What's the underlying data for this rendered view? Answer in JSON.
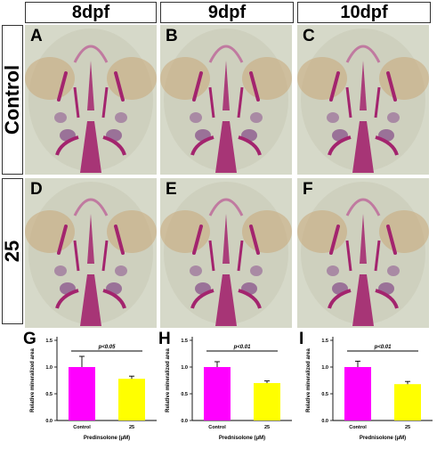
{
  "columns": [
    "8dpf",
    "9dpf",
    "10dpf"
  ],
  "rows": [
    "Control",
    "25"
  ],
  "panel_labels": [
    "A",
    "B",
    "C",
    "D",
    "E",
    "F"
  ],
  "chart_data": [
    {
      "type": "bar",
      "label": "G",
      "categories": [
        "Control",
        "25"
      ],
      "values": [
        1.0,
        0.78
      ],
      "errors": [
        0.2,
        0.05
      ],
      "colors": [
        "#ff00ff",
        "#ffff00"
      ],
      "ylabel": "Relative mineralized area",
      "xlabel": "Predinsolone (μM)",
      "ylim": [
        0,
        1.5
      ],
      "yticks": [
        "0.0",
        "0.5",
        "1.0",
        "1.5"
      ],
      "significance": "p<0.05"
    },
    {
      "type": "bar",
      "label": "H",
      "categories": [
        "Control",
        "25"
      ],
      "values": [
        1.0,
        0.7
      ],
      "errors": [
        0.1,
        0.04
      ],
      "colors": [
        "#ff00ff",
        "#ffff00"
      ],
      "ylabel": "Relative mineralized area",
      "xlabel": "Prednisolone (μM)",
      "ylim": [
        0,
        1.5
      ],
      "yticks": [
        "0.0",
        "0.5",
        "1.0",
        "1.5"
      ],
      "significance": "p<0.01"
    },
    {
      "type": "bar",
      "label": "I",
      "categories": [
        "Control",
        "25"
      ],
      "values": [
        1.0,
        0.68
      ],
      "errors": [
        0.11,
        0.05
      ],
      "colors": [
        "#ff00ff",
        "#ffff00"
      ],
      "ylabel": "Relative mineralized area",
      "xlabel": "Prednisolone (μM)",
      "ylim": [
        0,
        1.5
      ],
      "yticks": [
        "0.0",
        "0.5",
        "1.0",
        "1.5"
      ],
      "significance": "p<0.01"
    }
  ]
}
